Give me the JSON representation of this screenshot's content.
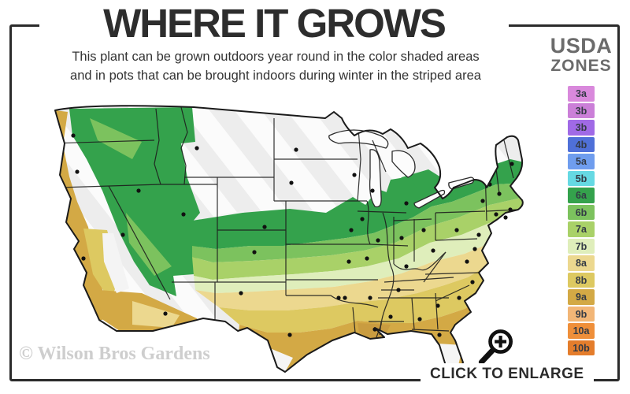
{
  "header": {
    "title": "WHERE IT GROWS",
    "subtitle_line1": "This plant can be grown outdoors year round in the color shaded areas",
    "subtitle_line2": "and in pots that can be brought indoors during winter in the striped area"
  },
  "legend": {
    "title_line1": "USDA",
    "title_line2": "ZONES",
    "zones": [
      {
        "label": "3a",
        "color": "#d989dc"
      },
      {
        "label": "3b",
        "color": "#cb7fd8"
      },
      {
        "label": "3b",
        "color": "#a06ae6"
      },
      {
        "label": "4b",
        "color": "#4f70d8"
      },
      {
        "label": "5a",
        "color": "#6f9dee"
      },
      {
        "label": "5b",
        "color": "#66d9e3"
      },
      {
        "label": "6a",
        "color": "#34a24c"
      },
      {
        "label": "6b",
        "color": "#7cc25e"
      },
      {
        "label": "7a",
        "color": "#a9d168"
      },
      {
        "label": "7b",
        "color": "#dfeebb"
      },
      {
        "label": "8a",
        "color": "#ecd88f"
      },
      {
        "label": "8b",
        "color": "#ddc961"
      },
      {
        "label": "9a",
        "color": "#d3a945"
      },
      {
        "label": "9b",
        "color": "#f2b677"
      },
      {
        "label": "10a",
        "color": "#ef8f3a"
      },
      {
        "label": "10b",
        "color": "#e47d2c"
      }
    ]
  },
  "map": {
    "watermark": "© Wilson Bros Gardens",
    "striped_region_meaning": "grow in pots, bring indoors during winter",
    "shaded_region_meaning": "grows outdoors year round"
  },
  "footer": {
    "click_to_enlarge": "CLICK TO ENLARGE"
  },
  "colors": {
    "frame_border": "#2b2b2b",
    "title_text": "#2d2d2d",
    "legend_title_text": "#6b6b6b",
    "watermark_text": "#cecece"
  }
}
